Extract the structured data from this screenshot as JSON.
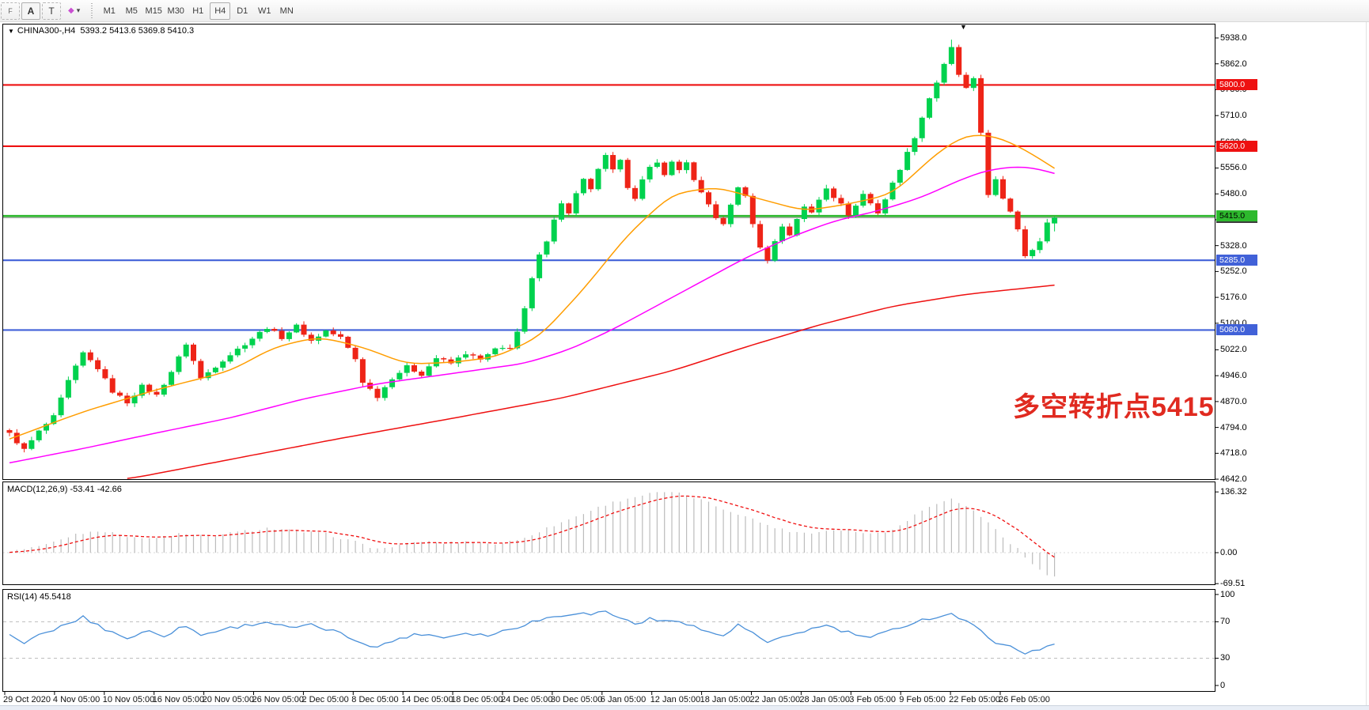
{
  "toolbar": {
    "tools": [
      {
        "id": "frame-tool",
        "glyph": "F"
      },
      {
        "id": "text-tool",
        "glyph": "A"
      },
      {
        "id": "text-label-tool",
        "glyph": "T"
      },
      {
        "id": "shapes-tool",
        "glyph": "◆",
        "caret": "▾"
      }
    ],
    "timeframes": [
      {
        "label": "M1",
        "active": false
      },
      {
        "label": "M5",
        "active": false
      },
      {
        "label": "M15",
        "active": false
      },
      {
        "label": "M30",
        "active": false
      },
      {
        "label": "H1",
        "active": false
      },
      {
        "label": "H4",
        "active": true
      },
      {
        "label": "D1",
        "active": false
      },
      {
        "label": "W1",
        "active": false
      },
      {
        "label": "MN",
        "active": false
      }
    ]
  },
  "chart": {
    "title": {
      "marker": "▼",
      "symbol": "CHINA300-,H4",
      "ohlc": "5393.2 5413.6 5369.8 5410.3"
    },
    "annotation": {
      "text": "多空转折点5415",
      "color": "#e02a20"
    },
    "shift_marker": "▼"
  },
  "panels": {
    "macd_label": "MACD(12,26,9) -53.41 -42.66",
    "rsi_label": "RSI(14) 45.5418"
  },
  "chart_data": [
    {
      "type": "candlestick",
      "title": "CHINA300- H4",
      "x_labels": [
        "29 Oct 2020",
        "4 Nov 05:00",
        "10 Nov 05:00",
        "16 Nov 05:00",
        "20 Nov 05:00",
        "26 Nov 05:00",
        "2 Dec 05:00",
        "8 Dec 05:00",
        "14 Dec 05:00",
        "18 Dec 05:00",
        "24 Dec 05:00",
        "30 Dec 05:00",
        "6 Jan 05:00",
        "12 Jan 05:00",
        "18 Jan 05:00",
        "22 Jan 05:00",
        "28 Jan 05:00",
        "3 Feb 05:00",
        "9 Feb 05:00",
        "22 Feb 05:00",
        "26 Feb 05:00"
      ],
      "y_ticks": [
        5938.0,
        5862.0,
        5786.0,
        5710.0,
        5632.0,
        5556.0,
        5480.0,
        5404.0,
        5328.0,
        5252.0,
        5176.0,
        5100.0,
        5022.0,
        4946.0,
        4870.0,
        4794.0,
        4718.0,
        4642.0
      ],
      "ylim": [
        4642,
        5970
      ],
      "grid": false,
      "legend_position": "none",
      "bull_color": "#00d24e",
      "bear_color": "#ee2417",
      "levels": [
        {
          "price": 5800.0,
          "label": "5800.0",
          "color": "#ee1111",
          "badge_text": "#ffffff"
        },
        {
          "price": 5620.0,
          "label": "5620.0",
          "color": "#ee1111",
          "badge_text": "#ffffff"
        },
        {
          "price": 5415.0,
          "label": "5415.0",
          "color": "#2db92d",
          "badge_text": "#000000"
        },
        {
          "price": 5285.0,
          "label": "5285.0",
          "color": "#4161d8",
          "badge_text": "#ffffff"
        },
        {
          "price": 5080.0,
          "label": "5080.0",
          "color": "#4161d8",
          "badge_text": "#ffffff"
        }
      ],
      "bid": {
        "price": 5410.3,
        "label": "5410.3",
        "color": "#8a8a8a"
      },
      "last_candle": {
        "open": 5393.2,
        "high": 5413.6,
        "low": 5369.8,
        "close": 5410.3
      },
      "close_anchors": [
        [
          0,
          4775
        ],
        [
          2,
          4728
        ],
        [
          4,
          4782
        ],
        [
          6,
          4825
        ],
        [
          8,
          4930
        ],
        [
          10,
          5012
        ],
        [
          12,
          4968
        ],
        [
          14,
          4900
        ],
        [
          16,
          4868
        ],
        [
          18,
          4915
        ],
        [
          20,
          4888
        ],
        [
          22,
          4958
        ],
        [
          24,
          5040
        ],
        [
          26,
          4938
        ],
        [
          29,
          4992
        ],
        [
          32,
          5040
        ],
        [
          35,
          5088
        ],
        [
          37,
          5058
        ],
        [
          39,
          5092
        ],
        [
          41,
          5048
        ],
        [
          43,
          5078
        ],
        [
          45,
          5058
        ],
        [
          47,
          4995
        ],
        [
          48,
          4928
        ],
        [
          50,
          4885
        ],
        [
          52,
          4940
        ],
        [
          54,
          4972
        ],
        [
          56,
          4950
        ],
        [
          58,
          4998
        ],
        [
          60,
          4982
        ],
        [
          62,
          5012
        ],
        [
          64,
          4992
        ],
        [
          66,
          5022
        ],
        [
          68,
          5030
        ],
        [
          69,
          5075
        ],
        [
          70,
          5140
        ],
        [
          71,
          5230
        ],
        [
          72,
          5298
        ],
        [
          73,
          5345
        ],
        [
          74,
          5408
        ],
        [
          75,
          5450
        ],
        [
          76,
          5425
        ],
        [
          77,
          5480
        ],
        [
          78,
          5520
        ],
        [
          79,
          5490
        ],
        [
          80,
          5555
        ],
        [
          81,
          5590
        ],
        [
          82,
          5548
        ],
        [
          83,
          5575
        ],
        [
          84,
          5502
        ],
        [
          85,
          5470
        ],
        [
          86,
          5520
        ],
        [
          87,
          5555
        ],
        [
          88,
          5570
        ],
        [
          89,
          5540
        ],
        [
          90,
          5572
        ],
        [
          91,
          5550
        ],
        [
          92,
          5575
        ],
        [
          93,
          5518
        ],
        [
          94,
          5480
        ],
        [
          95,
          5448
        ],
        [
          96,
          5412
        ],
        [
          97,
          5388
        ],
        [
          98,
          5448
        ],
        [
          99,
          5502
        ],
        [
          100,
          5470
        ],
        [
          101,
          5395
        ],
        [
          102,
          5320
        ],
        [
          103,
          5288
        ],
        [
          104,
          5340
        ],
        [
          105,
          5385
        ],
        [
          106,
          5360
        ],
        [
          107,
          5408
        ],
        [
          108,
          5440
        ],
        [
          109,
          5425
        ],
        [
          110,
          5465
        ],
        [
          111,
          5500
        ],
        [
          112,
          5472
        ],
        [
          113,
          5448
        ],
        [
          114,
          5420
        ],
        [
          115,
          5445
        ],
        [
          116,
          5480
        ],
        [
          117,
          5452
        ],
        [
          118,
          5425
        ],
        [
          119,
          5465
        ],
        [
          120,
          5510
        ],
        [
          121,
          5555
        ],
        [
          122,
          5600
        ],
        [
          123,
          5648
        ],
        [
          124,
          5705
        ],
        [
          125,
          5762
        ],
        [
          126,
          5808
        ],
        [
          127,
          5858
        ],
        [
          128,
          5908
        ],
        [
          129,
          5830
        ],
        [
          130,
          5788
        ],
        [
          131,
          5815
        ],
        [
          132,
          5660
        ],
        [
          133,
          5480
        ],
        [
          134,
          5520
        ],
        [
          135,
          5462
        ],
        [
          136,
          5430
        ],
        [
          137,
          5378
        ],
        [
          138,
          5300
        ],
        [
          139,
          5320
        ],
        [
          140,
          5340
        ],
        [
          141,
          5393
        ],
        [
          142,
          5410.3
        ]
      ],
      "ma_lines": [
        {
          "name": "ma-fast",
          "color": "#ff9d00",
          "anchors": [
            [
              0,
              4760
            ],
            [
              10,
              4840
            ],
            [
              20,
              4905
            ],
            [
              30,
              4960
            ],
            [
              36,
              5030
            ],
            [
              42,
              5060
            ],
            [
              48,
              5030
            ],
            [
              54,
              4980
            ],
            [
              60,
              4985
            ],
            [
              66,
              5000
            ],
            [
              72,
              5060
            ],
            [
              78,
              5200
            ],
            [
              84,
              5360
            ],
            [
              90,
              5480
            ],
            [
              96,
              5500
            ],
            [
              102,
              5465
            ],
            [
              108,
              5430
            ],
            [
              114,
              5450
            ],
            [
              120,
              5480
            ],
            [
              126,
              5600
            ],
            [
              130,
              5655
            ],
            [
              134,
              5650
            ],
            [
              138,
              5610
            ],
            [
              142,
              5555
            ]
          ]
        },
        {
          "name": "ma-mid",
          "color": "#ff00ff",
          "anchors": [
            [
              0,
              4690
            ],
            [
              10,
              4732
            ],
            [
              20,
              4778
            ],
            [
              30,
              4822
            ],
            [
              40,
              4878
            ],
            [
              50,
              4922
            ],
            [
              60,
              4952
            ],
            [
              70,
              4982
            ],
            [
              76,
              5022
            ],
            [
              82,
              5082
            ],
            [
              88,
              5152
            ],
            [
              94,
              5222
            ],
            [
              100,
              5292
            ],
            [
              106,
              5352
            ],
            [
              112,
              5400
            ],
            [
              118,
              5430
            ],
            [
              124,
              5470
            ],
            [
              128,
              5510
            ],
            [
              132,
              5545
            ],
            [
              136,
              5560
            ],
            [
              139,
              5558
            ],
            [
              142,
              5540
            ]
          ]
        },
        {
          "name": "ma-slow",
          "color": "#ee1010",
          "anchors": [
            [
              16,
              4642
            ],
            [
              30,
              4700
            ],
            [
              45,
              4762
            ],
            [
              60,
              4820
            ],
            [
              75,
              4880
            ],
            [
              90,
              4960
            ],
            [
              100,
              5030
            ],
            [
              110,
              5095
            ],
            [
              120,
              5150
            ],
            [
              130,
              5185
            ],
            [
              142,
              5212
            ]
          ]
        }
      ]
    },
    {
      "type": "bar",
      "title": "MACD(12,26,9)",
      "values_label": "-53.41 -42.66",
      "macd_value": -53.41,
      "signal_value": -42.66,
      "y_ticks": [
        136.32,
        0.0,
        -69.51
      ],
      "hist_color": "#bcbcbc",
      "signal_color": "#f01010",
      "hist_anchors": [
        [
          0,
          3
        ],
        [
          5,
          18
        ],
        [
          9,
          42
        ],
        [
          12,
          50
        ],
        [
          15,
          40
        ],
        [
          19,
          30
        ],
        [
          23,
          42
        ],
        [
          27,
          36
        ],
        [
          31,
          46
        ],
        [
          35,
          55
        ],
        [
          39,
          48
        ],
        [
          43,
          42
        ],
        [
          47,
          24
        ],
        [
          50,
          8
        ],
        [
          53,
          16
        ],
        [
          56,
          26
        ],
        [
          59,
          21
        ],
        [
          63,
          25
        ],
        [
          66,
          19
        ],
        [
          69,
          28
        ],
        [
          72,
          48
        ],
        [
          75,
          68
        ],
        [
          78,
          88
        ],
        [
          81,
          108
        ],
        [
          84,
          122
        ],
        [
          87,
          132
        ],
        [
          89,
          136
        ],
        [
          91,
          132
        ],
        [
          93,
          124
        ],
        [
          95,
          112
        ],
        [
          97,
          98
        ],
        [
          99,
          88
        ],
        [
          101,
          75
        ],
        [
          103,
          62
        ],
        [
          105,
          52
        ],
        [
          107,
          46
        ],
        [
          109,
          44
        ],
        [
          111,
          50
        ],
        [
          113,
          52
        ],
        [
          115,
          48
        ],
        [
          117,
          42
        ],
        [
          119,
          48
        ],
        [
          121,
          60
        ],
        [
          123,
          85
        ],
        [
          125,
          105
        ],
        [
          127,
          118
        ],
        [
          128,
          120
        ],
        [
          129,
          112
        ],
        [
          131,
          95
        ],
        [
          133,
          68
        ],
        [
          135,
          35
        ],
        [
          137,
          8
        ],
        [
          139,
          -28
        ],
        [
          141,
          -48
        ],
        [
          142,
          -53.41
        ]
      ]
    },
    {
      "type": "line",
      "title": "RSI(14)",
      "value_label": "45.5418",
      "rsi_value": 45.5418,
      "y_ticks": [
        100,
        70,
        30,
        0
      ],
      "levels": [
        70,
        30
      ],
      "line_color": "#4a90d9",
      "anchors": [
        [
          0,
          55
        ],
        [
          2,
          47
        ],
        [
          5,
          58
        ],
        [
          8,
          68
        ],
        [
          10,
          75
        ],
        [
          13,
          62
        ],
        [
          16,
          52
        ],
        [
          19,
          60
        ],
        [
          21,
          55
        ],
        [
          24,
          66
        ],
        [
          26,
          55
        ],
        [
          29,
          62
        ],
        [
          32,
          66
        ],
        [
          35,
          70
        ],
        [
          38,
          63
        ],
        [
          41,
          66
        ],
        [
          44,
          60
        ],
        [
          47,
          50
        ],
        [
          50,
          42
        ],
        [
          53,
          52
        ],
        [
          56,
          57
        ],
        [
          59,
          53
        ],
        [
          62,
          58
        ],
        [
          65,
          55
        ],
        [
          68,
          62
        ],
        [
          71,
          70
        ],
        [
          74,
          76
        ],
        [
          77,
          80
        ],
        [
          79,
          78
        ],
        [
          81,
          82
        ],
        [
          83,
          74
        ],
        [
          85,
          68
        ],
        [
          87,
          73
        ],
        [
          89,
          70
        ],
        [
          91,
          72
        ],
        [
          93,
          65
        ],
        [
          95,
          58
        ],
        [
          97,
          55
        ],
        [
          99,
          66
        ],
        [
          101,
          58
        ],
        [
          103,
          46
        ],
        [
          105,
          52
        ],
        [
          107,
          58
        ],
        [
          109,
          62
        ],
        [
          111,
          66
        ],
        [
          113,
          60
        ],
        [
          115,
          56
        ],
        [
          117,
          52
        ],
        [
          119,
          58
        ],
        [
          121,
          64
        ],
        [
          123,
          70
        ],
        [
          125,
          74
        ],
        [
          127,
          77
        ],
        [
          128,
          79
        ],
        [
          130,
          70
        ],
        [
          132,
          60
        ],
        [
          134,
          48
        ],
        [
          136,
          42
        ],
        [
          138,
          36
        ],
        [
          139,
          40
        ],
        [
          140,
          38
        ],
        [
          141,
          42
        ],
        [
          142,
          45.54
        ]
      ]
    }
  ]
}
